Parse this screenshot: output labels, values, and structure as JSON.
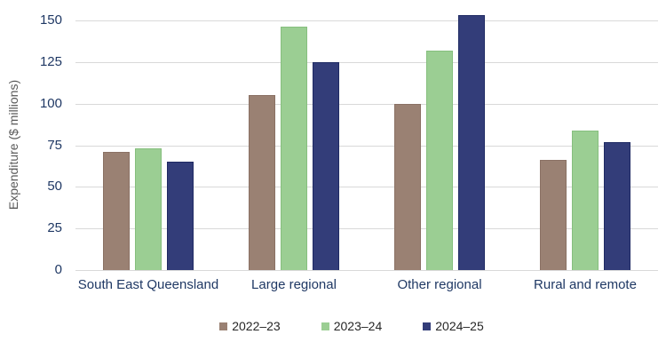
{
  "chart_data": {
    "type": "bar",
    "categories": [
      "South East Queensland",
      "Large regional",
      "Other regional",
      "Rural and remote"
    ],
    "series": [
      {
        "name": "2022–23",
        "color": "#9a8173",
        "border_color": "#8a7164",
        "values": [
          71,
          105,
          100,
          66
        ]
      },
      {
        "name": "2023–24",
        "color": "#9bce93",
        "border_color": "#86bf7e",
        "values": [
          73,
          146,
          132,
          84
        ]
      },
      {
        "name": "2024–25",
        "color": "#333d79",
        "border_color": "#1f2a63",
        "values": [
          65,
          125,
          153,
          77
        ]
      }
    ],
    "title": "",
    "xlabel": "",
    "ylabel": "Expenditure ($ millions)",
    "ylim": [
      0,
      150
    ],
    "yticks": [
      0,
      25,
      50,
      75,
      100,
      125,
      150
    ],
    "grid": true,
    "legend_position": "bottom"
  },
  "colors": {
    "background": "#ffffff",
    "gridline": "#d9d9d9",
    "axis_tick_label": "#1f3864",
    "category_label": "#1f3864",
    "y_title": "#595959",
    "legend_text": "#262626"
  }
}
